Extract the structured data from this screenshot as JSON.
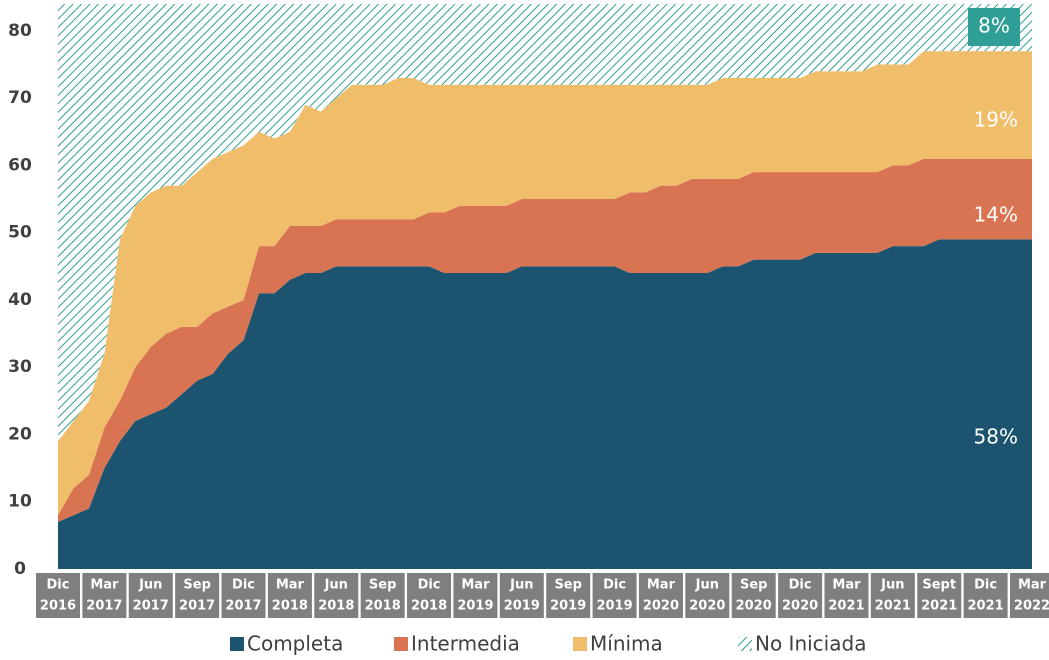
{
  "chart_data": {
    "type": "stacked_area",
    "categories": [
      [
        "Dic",
        "2016"
      ],
      null,
      null,
      [
        "Mar",
        "2017"
      ],
      null,
      null,
      [
        "Jun",
        "2017"
      ],
      null,
      null,
      [
        "Sep",
        "2017"
      ],
      null,
      null,
      [
        "Dic",
        "2017"
      ],
      null,
      null,
      [
        "Mar",
        "2018"
      ],
      null,
      null,
      [
        "Jun",
        "2018"
      ],
      null,
      null,
      [
        "Sep",
        "2018"
      ],
      null,
      null,
      [
        "Dic",
        "2018"
      ],
      null,
      null,
      [
        "Mar",
        "2019"
      ],
      null,
      null,
      [
        "Jun",
        "2019"
      ],
      null,
      null,
      [
        "Sep",
        "2019"
      ],
      null,
      null,
      [
        "Dic",
        "2019"
      ],
      null,
      null,
      [
        "Mar",
        "2020"
      ],
      null,
      null,
      [
        "Jun",
        "2020"
      ],
      null,
      null,
      [
        "Sep",
        "2020"
      ],
      null,
      null,
      [
        "Dic",
        "2020"
      ],
      null,
      null,
      [
        "Mar",
        "2021"
      ],
      null,
      null,
      [
        "Jun",
        "2021"
      ],
      null,
      null,
      [
        "Sept",
        "2021"
      ],
      null,
      null,
      [
        "Dic",
        "2021"
      ],
      null,
      null,
      [
        "Mar",
        "2022"
      ]
    ],
    "series": [
      {
        "name": "Completa",
        "color": "#1c5470",
        "values": [
          7,
          8,
          9,
          15,
          19,
          22,
          23,
          24,
          26,
          28,
          29,
          32,
          34,
          41,
          41,
          43,
          44,
          44,
          45,
          45,
          45,
          45,
          45,
          45,
          45,
          44,
          44,
          44,
          44,
          44,
          45,
          45,
          45,
          45,
          45,
          45,
          45,
          44,
          44,
          44,
          44,
          44,
          44,
          45,
          45,
          46,
          46,
          46,
          46,
          47,
          47,
          47,
          47,
          47,
          48,
          48,
          48,
          49,
          49,
          49,
          49,
          49,
          49,
          49
        ]
      },
      {
        "name": "Intermedia",
        "color": "#d97452",
        "values": [
          1,
          4,
          5,
          6,
          6,
          8,
          10,
          11,
          10,
          8,
          9,
          7,
          6,
          7,
          7,
          8,
          7,
          7,
          7,
          7,
          7,
          7,
          7,
          7,
          8,
          9,
          10,
          10,
          10,
          10,
          10,
          10,
          10,
          10,
          10,
          10,
          10,
          12,
          12,
          13,
          13,
          14,
          14,
          13,
          13,
          13,
          13,
          13,
          13,
          12,
          12,
          12,
          12,
          12,
          12,
          12,
          13,
          12,
          12,
          12,
          12,
          12,
          12,
          12
        ]
      },
      {
        "name": "Mínima",
        "color": "#f0bd6b",
        "values": [
          11,
          10,
          11,
          11,
          24,
          24,
          23,
          22,
          21,
          23,
          23,
          23,
          23,
          17,
          16,
          14,
          18,
          17,
          18,
          20,
          20,
          20,
          21,
          21,
          19,
          19,
          18,
          18,
          18,
          18,
          17,
          17,
          17,
          17,
          17,
          17,
          17,
          16,
          16,
          15,
          15,
          14,
          14,
          15,
          15,
          14,
          14,
          14,
          14,
          15,
          15,
          15,
          15,
          16,
          15,
          15,
          16,
          16,
          16,
          16,
          16,
          16,
          16,
          16
        ]
      },
      {
        "name": "No Iniciada",
        "color": "#2f9e97",
        "hatch": true,
        "values": [
          65,
          62,
          59,
          52,
          35,
          30,
          28,
          27,
          27,
          25,
          23,
          22,
          21,
          19,
          20,
          19,
          15,
          16,
          14,
          12,
          12,
          12,
          11,
          11,
          12,
          12,
          12,
          12,
          12,
          12,
          12,
          12,
          12,
          12,
          12,
          12,
          12,
          12,
          12,
          12,
          12,
          12,
          12,
          11,
          11,
          11,
          11,
          11,
          11,
          10,
          10,
          10,
          10,
          9,
          9,
          9,
          7,
          7,
          7,
          7,
          7,
          7,
          7,
          7
        ]
      }
    ],
    "ylim": [
      0,
      84
    ],
    "yticks": [
      0,
      10,
      20,
      30,
      40,
      50,
      60,
      70,
      80
    ],
    "grid": false,
    "legend": "bottom",
    "annotations": [
      {
        "text": "58%"
      },
      {
        "text": "14%"
      },
      {
        "text": "19%"
      },
      {
        "text": "8%"
      }
    ]
  }
}
